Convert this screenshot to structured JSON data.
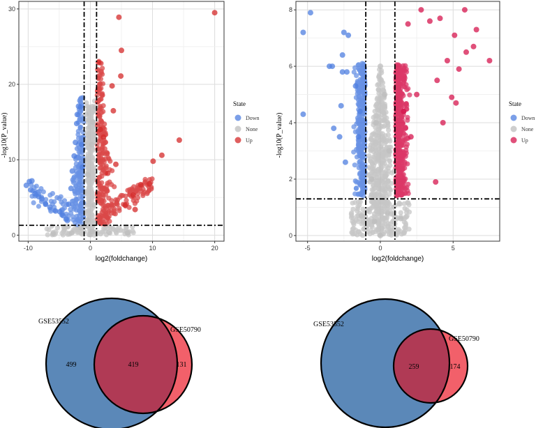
{
  "chart_data": [
    {
      "type": "scatter",
      "kind": "volcano",
      "xlabel": "log2(foldchange)",
      "ylabel": "-log10(P_value)",
      "xlim": [
        -11.5,
        21.5
      ],
      "ylim": [
        -0.8,
        31
      ],
      "xticks": [
        -10,
        0,
        10,
        20
      ],
      "yticks": [
        0,
        10,
        20,
        30
      ],
      "thresholds": {
        "x": [
          -1,
          1
        ],
        "y": 1.3
      },
      "grid": true,
      "legend": {
        "title": "State",
        "position": "right",
        "entries": [
          "Down",
          "None",
          "Up"
        ]
      },
      "colors": {
        "Down": "#4f7fe0",
        "None": "#bdbdbd",
        "Up": "#d42a2a"
      },
      "series": [
        {
          "name": "Down",
          "points": [
            [
              -10.3,
              6.6
            ],
            [
              -9.8,
              7.1
            ],
            [
              -9.4,
              7.2
            ],
            [
              -9.6,
              6.0
            ],
            [
              -8.9,
              5.5
            ],
            [
              -8.3,
              5.1
            ],
            [
              -7.8,
              4.8
            ],
            [
              -7.2,
              4.1
            ],
            [
              -6.5,
              3.7
            ],
            [
              -5.6,
              3.2
            ],
            [
              -4.9,
              3.1
            ],
            [
              -4.4,
              2.6
            ],
            [
              -3.9,
              2.1
            ],
            [
              -3.5,
              4.1
            ],
            [
              -3.1,
              6.2
            ],
            [
              -2.9,
              8.5
            ],
            [
              -2.6,
              10.5
            ],
            [
              -2.4,
              12.3
            ],
            [
              -2.2,
              14.8
            ],
            [
              -2.1,
              16.0
            ],
            [
              -1.9,
              17.1
            ],
            [
              -1.6,
              17.0
            ],
            [
              -1.4,
              12.0
            ],
            [
              -1.3,
              9.0
            ]
          ]
        },
        {
          "name": "None",
          "points": [
            [
              -0.2,
              0.1
            ],
            [
              0.3,
              0.5
            ],
            [
              -0.5,
              2.0
            ],
            [
              0.6,
              4.0
            ],
            [
              -0.4,
              8.0
            ],
            [
              0.2,
              12.0
            ],
            [
              0.4,
              15.0
            ],
            [
              -0.7,
              16.0
            ],
            [
              0.8,
              17.0
            ],
            [
              -3.0,
              0.3
            ],
            [
              3.0,
              0.4
            ],
            [
              -6.0,
              0.2
            ],
            [
              6.0,
              0.3
            ],
            [
              -1.5,
              1.0
            ]
          ]
        },
        {
          "name": "Up",
          "points": [
            [
              20.0,
              29.5
            ],
            [
              4.6,
              28.9
            ],
            [
              1.3,
              22.9
            ],
            [
              5.0,
              24.5
            ],
            [
              4.9,
              21.1
            ],
            [
              14.3,
              12.6
            ],
            [
              11.5,
              10.6
            ],
            [
              10.1,
              9.8
            ],
            [
              3.5,
              19.8
            ],
            [
              3.7,
              16.5
            ],
            [
              2.1,
              13.0
            ],
            [
              6.9,
              5.3
            ],
            [
              8.1,
              6.7
            ],
            [
              9.5,
              6.8
            ],
            [
              5.6,
              4.0
            ],
            [
              7.2,
              3.4
            ],
            [
              2.8,
              8.2
            ],
            [
              1.6,
              14.0
            ],
            [
              4.1,
              9.4
            ]
          ]
        }
      ]
    },
    {
      "type": "scatter",
      "kind": "volcano",
      "xlabel": "log2(foldchange)",
      "ylabel": "-log10(P_value)",
      "xlim": [
        -5.8,
        8.2
      ],
      "ylim": [
        -0.2,
        8.3
      ],
      "xticks": [
        -5,
        0,
        5
      ],
      "yticks": [
        0,
        2,
        4,
        6,
        8
      ],
      "thresholds": {
        "x": [
          -1,
          1
        ],
        "y": 1.3
      },
      "grid": true,
      "legend": {
        "title": "State",
        "position": "right",
        "entries": [
          "Down",
          "None",
          "Up"
        ]
      },
      "colors": {
        "Down": "#4f7fe0",
        "None": "#bdbdbd",
        "Up": "#d6154d"
      },
      "series": [
        {
          "name": "Down",
          "points": [
            [
              -4.8,
              7.9
            ],
            [
              -5.3,
              7.2
            ],
            [
              -2.5,
              7.2
            ],
            [
              -2.2,
              7.1
            ],
            [
              -2.6,
              6.4
            ],
            [
              -3.5,
              6.0
            ],
            [
              -3.3,
              6.0
            ],
            [
              -2.6,
              5.8
            ],
            [
              -2.3,
              5.8
            ],
            [
              -5.3,
              4.3
            ],
            [
              -2.7,
              4.6
            ],
            [
              -3.2,
              3.8
            ],
            [
              -2.8,
              3.5
            ],
            [
              -2.4,
              2.6
            ],
            [
              -1.5,
              3.5
            ],
            [
              -1.7,
              5.3
            ],
            [
              -1.4,
              4.4
            ]
          ]
        },
        {
          "name": "None",
          "points": [
            [
              0.0,
              0.0
            ],
            [
              -0.4,
              0.5
            ],
            [
              0.5,
              0.8
            ],
            [
              -0.6,
              2.0
            ],
            [
              0.6,
              3.0
            ],
            [
              -0.3,
              4.0
            ],
            [
              0.3,
              5.0
            ],
            [
              0.0,
              6.0
            ],
            [
              -1.3,
              0.7
            ],
            [
              1.4,
              0.6
            ]
          ]
        },
        {
          "name": "Up",
          "points": [
            [
              2.8,
              8.0
            ],
            [
              5.8,
              8.0
            ],
            [
              1.9,
              7.5
            ],
            [
              3.4,
              7.6
            ],
            [
              4.1,
              7.7
            ],
            [
              5.1,
              7.1
            ],
            [
              6.6,
              7.3
            ],
            [
              6.4,
              6.7
            ],
            [
              5.9,
              6.5
            ],
            [
              7.5,
              6.2
            ],
            [
              4.6,
              6.2
            ],
            [
              3.9,
              5.5
            ],
            [
              5.4,
              5.9
            ],
            [
              4.9,
              4.9
            ],
            [
              5.2,
              4.7
            ],
            [
              4.3,
              4.0
            ],
            [
              3.8,
              1.9
            ],
            [
              2.5,
              5.0
            ],
            [
              2.1,
              3.5
            ],
            [
              1.6,
              4.4
            ]
          ]
        }
      ]
    },
    {
      "type": "venn",
      "sets": [
        {
          "name": "GSE53552",
          "only": 499,
          "color": "#5b88b8"
        },
        {
          "name": "GSE50790",
          "only": 131,
          "color": "#f2606a"
        }
      ],
      "intersection": 419,
      "intersection_color": "#b03a55"
    },
    {
      "type": "venn",
      "sets": [
        {
          "name": "GSE53552",
          "only": null,
          "color": "#5b88b8"
        },
        {
          "name": "GSE50790",
          "only": 174,
          "color": "#f2606a"
        }
      ],
      "intersection": 259,
      "intersection_color": "#b03a55"
    }
  ]
}
